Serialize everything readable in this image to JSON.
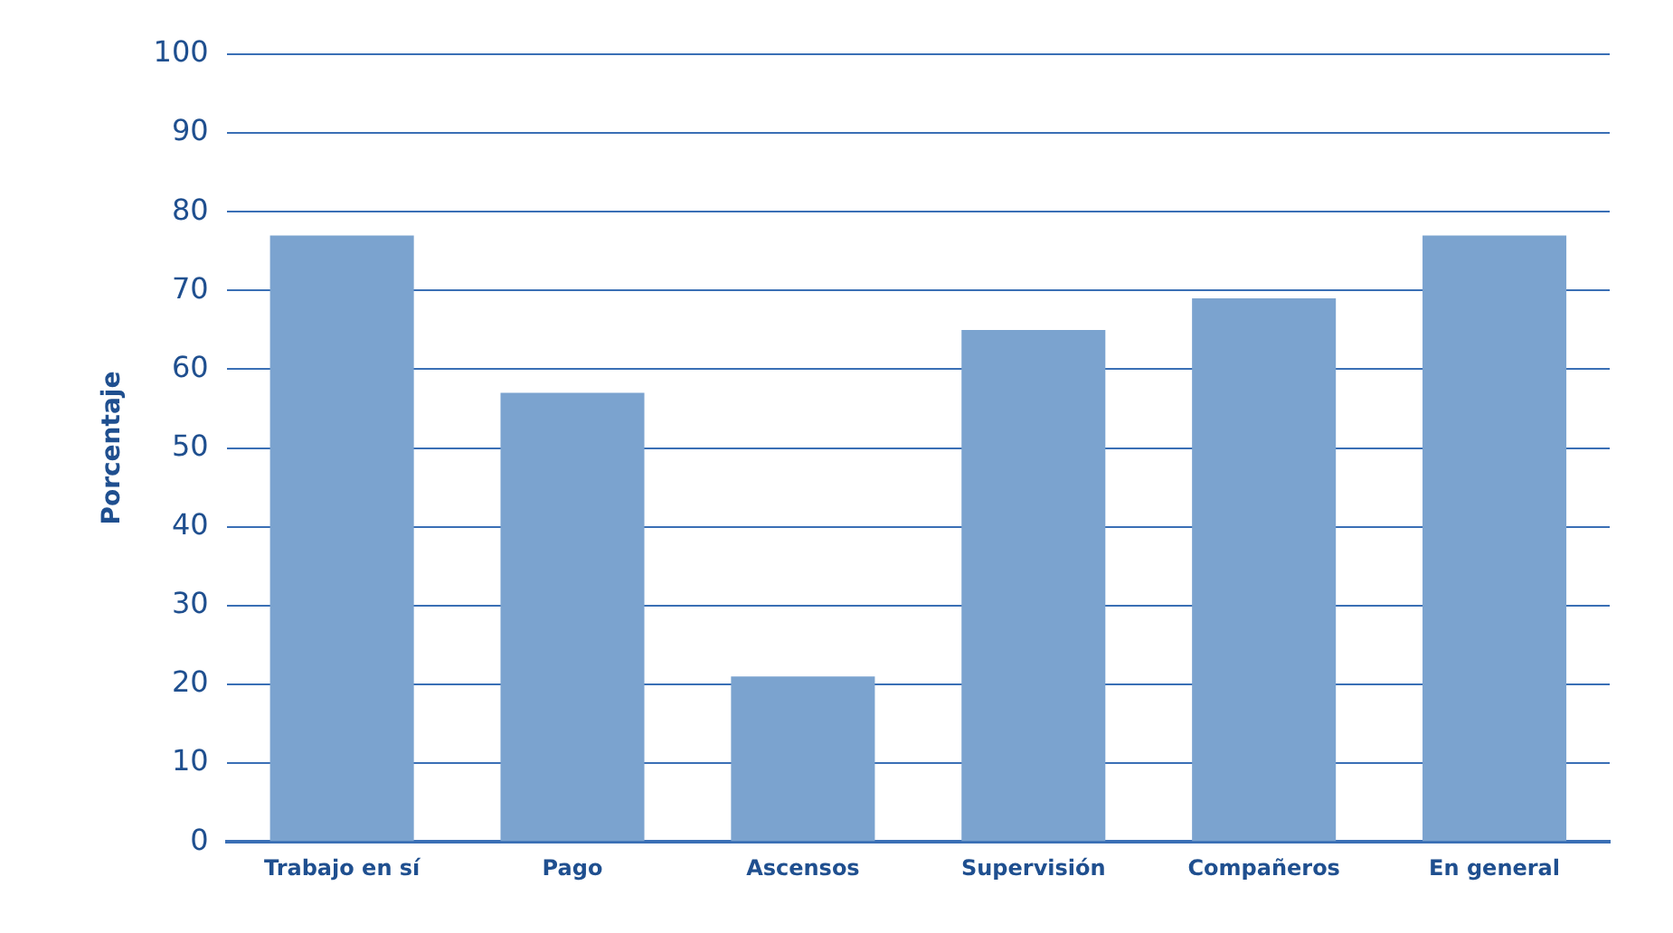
{
  "chart_data": {
    "type": "bar",
    "ylabel": "Porcentaje",
    "categories": [
      "Trabajo en sí",
      "Pago",
      "Ascensos",
      "Supervisión",
      "Compañeros",
      "En general"
    ],
    "values": [
      77,
      57,
      21,
      65,
      69,
      77
    ],
    "color": "#7ba3cf",
    "ylim": [
      0,
      100
    ],
    "yticks": [
      0,
      10,
      20,
      30,
      40,
      50,
      60,
      70,
      80,
      90,
      100
    ],
    "grid": "y",
    "legend": false
  }
}
